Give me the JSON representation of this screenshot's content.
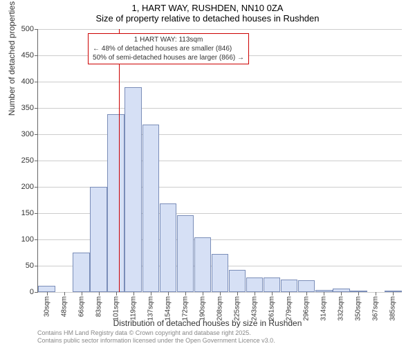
{
  "title_line1": "1, HART WAY, RUSHDEN, NN10 0ZA",
  "title_line2": "Size of property relative to detached houses in Rushden",
  "y_axis_label": "Number of detached properties",
  "x_axis_label": "Distribution of detached houses by size in Rushden",
  "chart": {
    "type": "histogram",
    "background_color": "#ffffff",
    "grid_color": "#cccccc",
    "bar_fill": "#d6e0f5",
    "bar_border": "#7a8db8",
    "marker_color": "#cc0000",
    "ylim": [
      0,
      500
    ],
    "yticks": [
      0,
      50,
      100,
      150,
      200,
      250,
      300,
      350,
      400,
      450,
      500
    ],
    "x_categories": [
      "30sqm",
      "48sqm",
      "66sqm",
      "83sqm",
      "101sqm",
      "119sqm",
      "137sqm",
      "154sqm",
      "172sqm",
      "190sqm",
      "208sqm",
      "225sqm",
      "243sqm",
      "261sqm",
      "279sqm",
      "296sqm",
      "314sqm",
      "332sqm",
      "350sqm",
      "367sqm",
      "385sqm"
    ],
    "values": [
      12,
      0,
      75,
      200,
      338,
      390,
      319,
      168,
      146,
      104,
      72,
      42,
      28,
      28,
      24,
      22,
      4,
      6,
      3,
      0,
      2
    ],
    "marker_value_sqm": 113,
    "x_min_sqm": 30,
    "x_range_sqm": 373,
    "label_fontsize": 12,
    "tick_fontsize": 11
  },
  "annotation": {
    "title": "1 HART WAY: 113sqm",
    "line1": "← 48% of detached houses are smaller (846)",
    "line2": "50% of semi-detached houses are larger (866) →",
    "border_color": "#cc0000"
  },
  "footer_line1": "Contains HM Land Registry data © Crown copyright and database right 2025.",
  "footer_line2": "Contains public sector information licensed under the Open Government Licence v3.0."
}
